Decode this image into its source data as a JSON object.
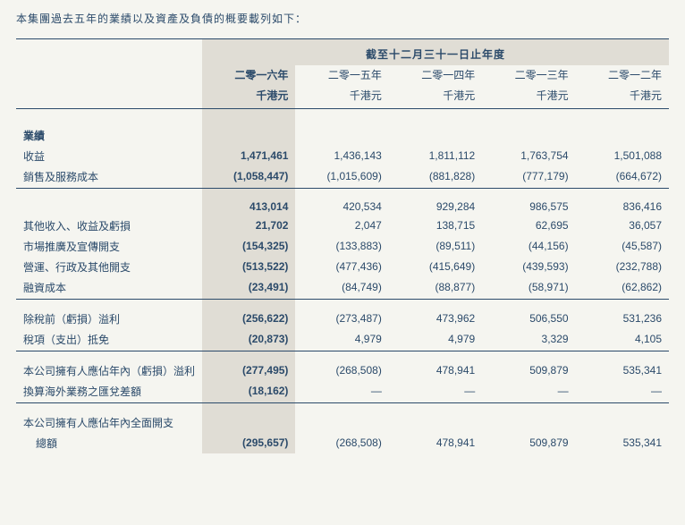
{
  "intro": "本集團過去五年的業績以及資產及負債的概要載列如下：",
  "header": {
    "span_title": "截至十二月三十一日止年度",
    "years": [
      "二零一六年",
      "二零一五年",
      "二零一四年",
      "二零一三年",
      "二零一二年"
    ],
    "unit": "千港元"
  },
  "sections": {
    "performance_label": "業績",
    "rows1": [
      {
        "label": "收益",
        "v": [
          "1,471,461",
          "1,436,143",
          "1,811,112",
          "1,763,754",
          "1,501,088"
        ]
      },
      {
        "label": "銷售及服務成本",
        "v": [
          "(1,058,447)",
          "(1,015,609)",
          "(881,828)",
          "(777,179)",
          "(664,672)"
        ]
      }
    ],
    "rows2": [
      {
        "label": "",
        "v": [
          "413,014",
          "420,534",
          "929,284",
          "986,575",
          "836,416"
        ]
      },
      {
        "label": "其他收入、收益及虧損",
        "v": [
          "21,702",
          "2,047",
          "138,715",
          "62,695",
          "36,057"
        ]
      },
      {
        "label": "市場推廣及宣傳開支",
        "v": [
          "(154,325)",
          "(133,883)",
          "(89,511)",
          "(44,156)",
          "(45,587)"
        ]
      },
      {
        "label": "營運、行政及其他開支",
        "v": [
          "(513,522)",
          "(477,436)",
          "(415,649)",
          "(439,593)",
          "(232,788)"
        ]
      },
      {
        "label": "融資成本",
        "v": [
          "(23,491)",
          "(84,749)",
          "(88,877)",
          "(58,971)",
          "(62,862)"
        ]
      }
    ],
    "rows3": [
      {
        "label": "除稅前（虧損）溢利",
        "v": [
          "(256,622)",
          "(273,487)",
          "473,962",
          "506,550",
          "531,236"
        ]
      },
      {
        "label": "稅項（支出）抵免",
        "v": [
          "(20,873)",
          "4,979",
          "4,979",
          "3,329",
          "4,105"
        ]
      }
    ],
    "rows4": [
      {
        "label": "本公司擁有人應佔年內（虧損）溢利",
        "v": [
          "(277,495)",
          "(268,508)",
          "478,941",
          "509,879",
          "535,341"
        ]
      },
      {
        "label": "換算海外業務之匯兌差額",
        "v": [
          "(18,162)",
          "—",
          "—",
          "—",
          "—"
        ]
      }
    ],
    "rows5_line1": "本公司擁有人應佔年內全面開支",
    "rows5_line2": "總額",
    "rows5_vals": [
      "(295,657)",
      "(268,508)",
      "478,941",
      "509,879",
      "535,341"
    ]
  },
  "colors": {
    "text": "#2b4a6a",
    "highlight_bg": "#e0ddd5",
    "page_bg": "#f5f5f0"
  }
}
